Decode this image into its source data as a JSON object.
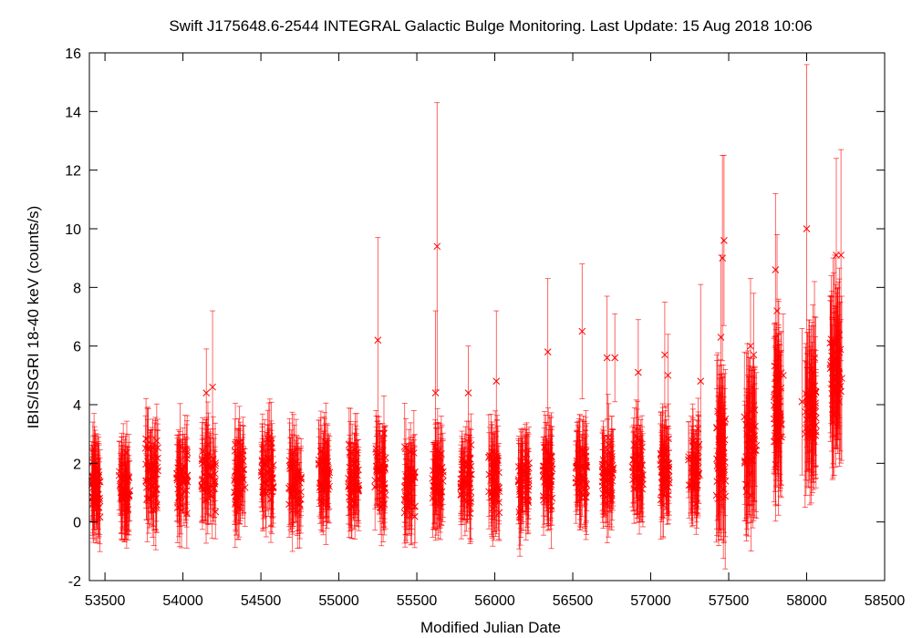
{
  "chart_data": {
    "type": "scatter",
    "title": "Swift J175648.6-2544   INTEGRAL Galactic Bulge Monitoring.  Last Update: 15 Aug 2018 10:06",
    "xlabel": "Modified Julian Date",
    "ylabel": "IBIS/ISGRI 18-40 keV (counts/s)",
    "xlim": [
      53400,
      58500
    ],
    "ylim": [
      -2,
      16
    ],
    "xticks": [
      53500,
      54000,
      54500,
      55000,
      55500,
      56000,
      56500,
      57000,
      57500,
      58000,
      58500
    ],
    "yticks": [
      -2,
      0,
      2,
      4,
      6,
      8,
      10,
      12,
      14,
      16
    ],
    "grid": false,
    "color": "#ff0000",
    "marker": "x",
    "error_bars": true,
    "seasons": [
      {
        "x_start": 53415,
        "x_end": 53470,
        "y_mean": 1.1
      },
      {
        "x_start": 53590,
        "x_end": 53660,
        "y_mean": 1.3
      },
      {
        "x_start": 53760,
        "x_end": 53840,
        "y_mean": 1.6
      },
      {
        "x_start": 53960,
        "x_end": 54030,
        "y_mean": 1.6
      },
      {
        "x_start": 54120,
        "x_end": 54210,
        "y_mean": 1.7
      },
      {
        "x_start": 54330,
        "x_end": 54400,
        "y_mean": 1.6
      },
      {
        "x_start": 54500,
        "x_end": 54580,
        "y_mean": 1.7
      },
      {
        "x_start": 54680,
        "x_end": 54760,
        "y_mean": 1.3
      },
      {
        "x_start": 54870,
        "x_end": 54940,
        "y_mean": 1.5
      },
      {
        "x_start": 55060,
        "x_end": 55130,
        "y_mean": 1.5
      },
      {
        "x_start": 55230,
        "x_end": 55300,
        "y_mean": 1.6
      },
      {
        "x_start": 55420,
        "x_end": 55490,
        "y_mean": 1.4
      },
      {
        "x_start": 55600,
        "x_end": 55670,
        "y_mean": 1.5
      },
      {
        "x_start": 55780,
        "x_end": 55850,
        "y_mean": 1.4
      },
      {
        "x_start": 55960,
        "x_end": 56030,
        "y_mean": 1.5
      },
      {
        "x_start": 56150,
        "x_end": 56220,
        "y_mean": 1.4
      },
      {
        "x_start": 56310,
        "x_end": 56370,
        "y_mean": 1.6
      },
      {
        "x_start": 56520,
        "x_end": 56590,
        "y_mean": 1.6
      },
      {
        "x_start": 56690,
        "x_end": 56760,
        "y_mean": 1.7
      },
      {
        "x_start": 56880,
        "x_end": 56950,
        "y_mean": 1.8
      },
      {
        "x_start": 57060,
        "x_end": 57120,
        "y_mean": 1.8
      },
      {
        "x_start": 57240,
        "x_end": 57310,
        "y_mean": 1.8
      },
      {
        "x_start": 57420,
        "x_end": 57480,
        "y_mean": 2.4
      },
      {
        "x_start": 57600,
        "x_end": 57680,
        "y_mean": 2.5
      },
      {
        "x_start": 57790,
        "x_end": 57840,
        "y_mean": 3.9
      },
      {
        "x_start": 57990,
        "x_end": 58060,
        "y_mean": 3.8
      },
      {
        "x_start": 58150,
        "x_end": 58220,
        "y_mean": 5.0
      }
    ],
    "highlighted_points": [
      {
        "x": 53430,
        "y": 2.5,
        "err": 1.2
      },
      {
        "x": 54150,
        "y": 4.4,
        "err": 1.5
      },
      {
        "x": 54190,
        "y": 4.6,
        "err": 2.6
      },
      {
        "x": 55250,
        "y": 6.2,
        "err": 3.5
      },
      {
        "x": 55620,
        "y": 4.4,
        "err": 2.8
      },
      {
        "x": 55630,
        "y": 9.4,
        "err": 4.9
      },
      {
        "x": 55830,
        "y": 4.4,
        "err": 1.6
      },
      {
        "x": 56010,
        "y": 4.8,
        "err": 2.4
      },
      {
        "x": 56340,
        "y": 5.8,
        "err": 2.5
      },
      {
        "x": 56560,
        "y": 6.5,
        "err": 2.3
      },
      {
        "x": 56720,
        "y": 5.6,
        "err": 2.1
      },
      {
        "x": 56770,
        "y": 5.6,
        "err": 1.5
      },
      {
        "x": 56920,
        "y": 5.1,
        "err": 1.8
      },
      {
        "x": 57090,
        "y": 5.7,
        "err": 1.8
      },
      {
        "x": 57110,
        "y": 5.0,
        "err": 1.4
      },
      {
        "x": 57320,
        "y": 4.8,
        "err": 3.3
      },
      {
        "x": 57450,
        "y": 6.3,
        "err": 2.8
      },
      {
        "x": 57460,
        "y": 9.0,
        "err": 3.5
      },
      {
        "x": 57470,
        "y": 9.6,
        "err": 2.9
      },
      {
        "x": 57640,
        "y": 6.0,
        "err": 2.3
      },
      {
        "x": 57660,
        "y": 5.7,
        "err": 2.1
      },
      {
        "x": 57800,
        "y": 8.6,
        "err": 2.6
      },
      {
        "x": 57810,
        "y": 7.2,
        "err": 2.6
      },
      {
        "x": 57820,
        "y": 5.6,
        "err": 2.0
      },
      {
        "x": 57830,
        "y": 3.6,
        "err": 2.2
      },
      {
        "x": 57850,
        "y": 5.0,
        "err": 2.1
      },
      {
        "x": 57970,
        "y": 4.1,
        "err": 2.5
      },
      {
        "x": 57990,
        "y": 3.0,
        "err": 2.5
      },
      {
        "x": 58000,
        "y": 10.0,
        "err": 5.6
      },
      {
        "x": 58040,
        "y": 4.7,
        "err": 2.7
      },
      {
        "x": 58050,
        "y": 5.6,
        "err": 2.6
      },
      {
        "x": 58060,
        "y": 3.3,
        "err": 1.8
      },
      {
        "x": 58160,
        "y": 5.3,
        "err": 2.4
      },
      {
        "x": 58170,
        "y": 6.2,
        "err": 2.8
      },
      {
        "x": 58180,
        "y": 5.8,
        "err": 3.3
      },
      {
        "x": 58190,
        "y": 9.1,
        "err": 3.3
      },
      {
        "x": 58200,
        "y": 5.5,
        "err": 2.5
      },
      {
        "x": 58210,
        "y": 4.7,
        "err": 2.8
      },
      {
        "x": 58220,
        "y": 9.1,
        "err": 3.6
      },
      {
        "x": 58225,
        "y": 4.9,
        "err": 2.8
      }
    ]
  }
}
